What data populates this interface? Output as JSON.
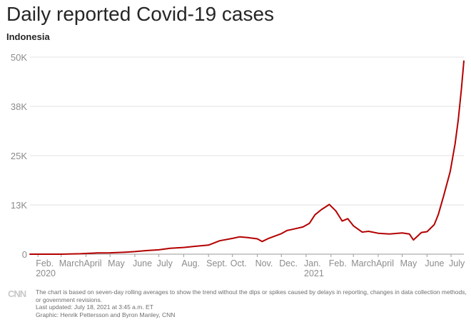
{
  "chart_data": {
    "type": "line",
    "title": "Daily reported Covid-19 cases",
    "subtitle": "Indonesia",
    "xlabel": "",
    "ylabel": "",
    "ylim": [
      0,
      50000
    ],
    "yticks": [
      {
        "value": 0,
        "label": "0"
      },
      {
        "value": 12500,
        "label": "13K"
      },
      {
        "value": 25000,
        "label": "25K"
      },
      {
        "value": 37500,
        "label": "38K"
      },
      {
        "value": 50000,
        "label": "50K"
      }
    ],
    "xlim": [
      "2020-01-22",
      "2021-07-17"
    ],
    "xticks": [
      {
        "date": "2020-02-01",
        "label": "Feb.",
        "year": "2020"
      },
      {
        "date": "2020-03-01",
        "label": "March"
      },
      {
        "date": "2020-04-01",
        "label": "April"
      },
      {
        "date": "2020-05-01",
        "label": "May"
      },
      {
        "date": "2020-06-01",
        "label": "June"
      },
      {
        "date": "2020-07-01",
        "label": "July"
      },
      {
        "date": "2020-08-01",
        "label": "Aug."
      },
      {
        "date": "2020-09-01",
        "label": "Sept."
      },
      {
        "date": "2020-10-01",
        "label": "Oct."
      },
      {
        "date": "2020-11-01",
        "label": "Nov."
      },
      {
        "date": "2020-12-01",
        "label": "Dec."
      },
      {
        "date": "2021-01-01",
        "label": "Jan.",
        "year": "2021"
      },
      {
        "date": "2021-02-01",
        "label": "Feb."
      },
      {
        "date": "2021-03-01",
        "label": "March"
      },
      {
        "date": "2021-04-01",
        "label": "April"
      },
      {
        "date": "2021-05-01",
        "label": "May"
      },
      {
        "date": "2021-06-01",
        "label": "June"
      },
      {
        "date": "2021-07-01",
        "label": "July"
      }
    ],
    "grid": true,
    "color": "#b40000",
    "series": [
      {
        "name": "",
        "points": [
          [
            "2020-01-22",
            0
          ],
          [
            "2020-03-01",
            0
          ],
          [
            "2020-03-25",
            100
          ],
          [
            "2020-04-15",
            300
          ],
          [
            "2020-05-01",
            350
          ],
          [
            "2020-05-20",
            500
          ],
          [
            "2020-06-01",
            650
          ],
          [
            "2020-06-15",
            900
          ],
          [
            "2020-07-01",
            1100
          ],
          [
            "2020-07-15",
            1500
          ],
          [
            "2020-08-01",
            1700
          ],
          [
            "2020-08-15",
            2000
          ],
          [
            "2020-09-01",
            2300
          ],
          [
            "2020-09-15",
            3400
          ],
          [
            "2020-10-01",
            4000
          ],
          [
            "2020-10-10",
            4400
          ],
          [
            "2020-10-20",
            4200
          ],
          [
            "2020-11-01",
            3900
          ],
          [
            "2020-11-07",
            3200
          ],
          [
            "2020-11-15",
            4000
          ],
          [
            "2020-12-01",
            5200
          ],
          [
            "2020-12-08",
            6000
          ],
          [
            "2020-12-15",
            6300
          ],
          [
            "2020-12-28",
            6900
          ],
          [
            "2021-01-05",
            7800
          ],
          [
            "2021-01-12",
            10000
          ],
          [
            "2021-01-20",
            11300
          ],
          [
            "2021-01-30",
            12600
          ],
          [
            "2021-02-07",
            11000
          ],
          [
            "2021-02-15",
            8400
          ],
          [
            "2021-02-22",
            9000
          ],
          [
            "2021-03-01",
            7200
          ],
          [
            "2021-03-12",
            5600
          ],
          [
            "2021-03-20",
            5800
          ],
          [
            "2021-04-01",
            5300
          ],
          [
            "2021-04-15",
            5100
          ],
          [
            "2021-05-01",
            5400
          ],
          [
            "2021-05-10",
            5100
          ],
          [
            "2021-05-15",
            3600
          ],
          [
            "2021-05-25",
            5500
          ],
          [
            "2021-06-01",
            5700
          ],
          [
            "2021-06-10",
            7500
          ],
          [
            "2021-06-15",
            10000
          ],
          [
            "2021-06-22",
            15000
          ],
          [
            "2021-06-30",
            21000
          ],
          [
            "2021-07-06",
            28000
          ],
          [
            "2021-07-10",
            34000
          ],
          [
            "2021-07-14",
            42000
          ],
          [
            "2021-07-17",
            49000
          ]
        ]
      }
    ]
  },
  "footer": {
    "logo": "CNN",
    "note": "The chart is based on seven-day rolling averages to show the trend without the dips or spikes caused by delays in reporting, changes in data collection methods, or government revisions.",
    "updated": "Last updated: July 18, 2021 at 3:45 a.m. ET",
    "credit": "Graphic: Henrik Pettersson and Byron Manley, CNN"
  }
}
